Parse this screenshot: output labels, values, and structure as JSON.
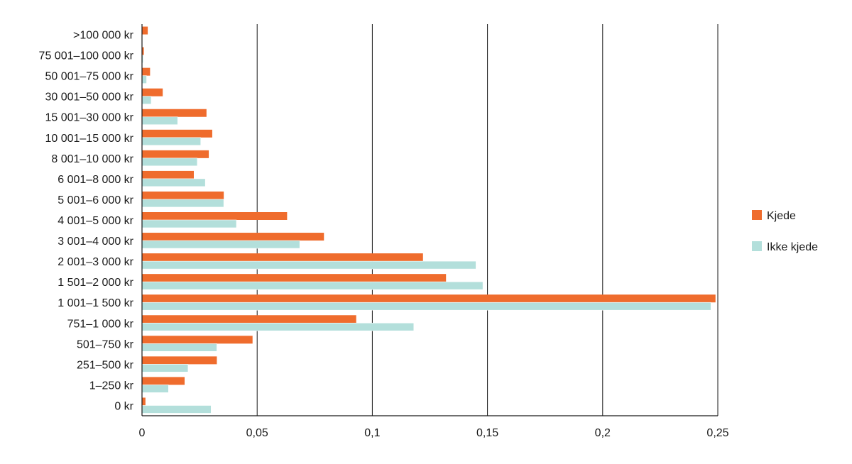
{
  "chart_data": {
    "type": "bar",
    "orientation": "horizontal",
    "categories": [
      ">100 000 kr",
      "75 001–100 000 kr",
      "50 001–75 000 kr",
      "30 001–50 000 kr",
      "15 001–30 000 kr",
      "10 001–15 000 kr",
      "8 001–10 000 kr",
      "6 001–8 000 kr",
      "5 001–6 000 kr",
      "4 001–5 000 kr",
      "3 001–4 000 kr",
      "2 001–3 000 kr",
      "1 501–2 000 kr",
      "1 001–1 500 kr",
      "751–1 000 kr",
      "501–750 kr",
      "251–500 kr",
      "1–250 kr",
      "0 kr"
    ],
    "series": [
      {
        "name": "Kjede",
        "color": "#ef6c2d",
        "values": [
          0.0025,
          0.0008,
          0.0035,
          0.009,
          0.028,
          0.0305,
          0.029,
          0.0225,
          0.0355,
          0.063,
          0.079,
          0.122,
          0.132,
          0.249,
          0.093,
          0.048,
          0.0325,
          0.0185,
          0.0015
        ]
      },
      {
        "name": "Ikke kjede",
        "color": "#b3dfdb",
        "values": [
          0.0,
          0.0005,
          0.002,
          0.004,
          0.0155,
          0.0255,
          0.024,
          0.0275,
          0.0355,
          0.041,
          0.0685,
          0.145,
          0.148,
          0.247,
          0.118,
          0.0325,
          0.02,
          0.0115,
          0.03
        ]
      }
    ],
    "xlim": [
      0,
      0.25
    ],
    "xticks": [
      "0",
      "0,05",
      "0,1",
      "0,15",
      "0,2",
      "0,25"
    ],
    "xtick_values": [
      0,
      0.05,
      0.1,
      0.15,
      0.2,
      0.25
    ],
    "grid": "vertical",
    "legend": "right",
    "title": "",
    "xlabel": "",
    "ylabel": ""
  }
}
